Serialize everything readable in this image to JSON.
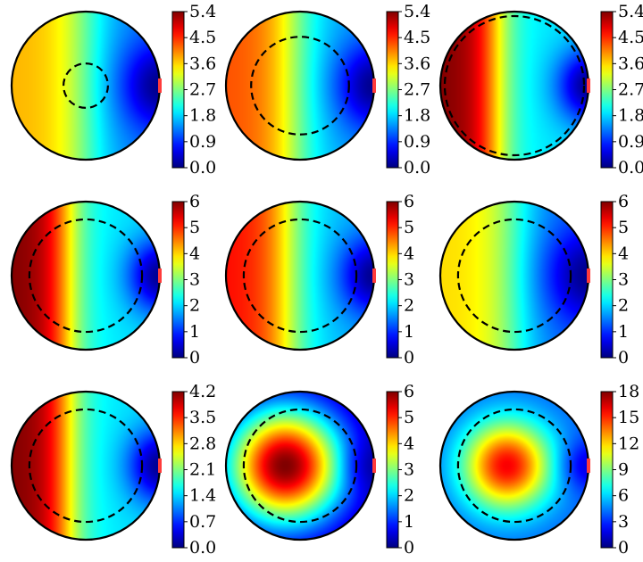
{
  "chart_data": [
    {
      "type": "heatmap",
      "field": "right-sink",
      "hot_center": 0.5,
      "hot_width": 0.62,
      "cold_x": 0.88,
      "sink_gauss": 0.35,
      "max_fraction": 0.7,
      "inner_circle_radius_ratio": 0.3,
      "colorbar_range": [
        0,
        5.4
      ],
      "colorbar_ticks": [
        "5.4",
        "4.5",
        "3.6",
        "2.7",
        "1.8",
        "0.9",
        "0.0"
      ]
    },
    {
      "type": "heatmap",
      "field": "right-sink",
      "hot_center": 0.42,
      "hot_width": 0.6,
      "cold_x": 0.88,
      "sink_gauss": 0.35,
      "max_fraction": 0.8,
      "inner_circle_radius_ratio": 0.66,
      "colorbar_range": [
        0,
        5.4
      ],
      "colorbar_ticks": [
        "5.4",
        "4.5",
        "3.6",
        "2.7",
        "1.8",
        "0.9",
        "0.0"
      ]
    },
    {
      "type": "heatmap",
      "field": "right-sink",
      "hot_center": 0.25,
      "hot_width": 0.45,
      "cold_x": 0.88,
      "sink_gauss": 0.3,
      "max_fraction": 1.0,
      "inner_circle_radius_ratio": 0.94,
      "colorbar_range": [
        0,
        5.4
      ],
      "colorbar_ticks": [
        "5.4",
        "4.5",
        "3.6",
        "2.7",
        "1.8",
        "0.9",
        "0.0"
      ]
    },
    {
      "type": "heatmap",
      "field": "right-sink",
      "hot_center": 0.25,
      "hot_width": 0.45,
      "cold_x": 0.88,
      "sink_gauss": 0.3,
      "max_fraction": 1.0,
      "inner_circle_radius_ratio": 0.76,
      "colorbar_range": [
        0,
        6
      ],
      "colorbar_ticks": [
        "6",
        "5",
        "4",
        "3",
        "2",
        "1",
        "0"
      ]
    },
    {
      "type": "heatmap",
      "field": "right-sink",
      "hot_center": 0.35,
      "hot_width": 0.55,
      "cold_x": 0.88,
      "sink_gauss": 0.32,
      "max_fraction": 0.87,
      "inner_circle_radius_ratio": 0.76,
      "colorbar_range": [
        0,
        6
      ],
      "colorbar_ticks": [
        "6",
        "5",
        "4",
        "3",
        "2",
        "1",
        "0"
      ]
    },
    {
      "type": "heatmap",
      "field": "right-sink",
      "hot_center": 0.5,
      "hot_width": 0.6,
      "cold_x": 0.88,
      "sink_gauss": 0.38,
      "max_fraction": 0.66,
      "inner_circle_radius_ratio": 0.76,
      "colorbar_range": [
        0,
        6
      ],
      "colorbar_ticks": [
        "6",
        "5",
        "4",
        "3",
        "2",
        "1",
        "0"
      ]
    },
    {
      "type": "heatmap",
      "field": "right-sink",
      "hot_center": 0.25,
      "hot_width": 0.45,
      "cold_x": 0.88,
      "sink_gauss": 0.3,
      "max_fraction": 1.0,
      "inner_circle_radius_ratio": 0.76,
      "colorbar_range": [
        0,
        4.2
      ],
      "colorbar_ticks": [
        "4.2",
        "3.5",
        "2.8",
        "2.1",
        "1.4",
        "0.7",
        "0.0"
      ]
    },
    {
      "type": "heatmap",
      "field": "central-peak",
      "peak_x": -0.2,
      "peak_y": 0.0,
      "peak_sigma": 0.55,
      "max_fraction": 1.0,
      "cold_x": 0.9,
      "inner_circle_radius_ratio": 0.76,
      "colorbar_range": [
        0,
        6
      ],
      "colorbar_ticks": [
        "6",
        "5",
        "4",
        "3",
        "2",
        "1",
        "0"
      ]
    },
    {
      "type": "heatmap",
      "field": "central-peak",
      "peak_x": -0.1,
      "peak_y": 0.0,
      "peak_sigma": 0.42,
      "max_fraction": 0.88,
      "base": 0.25,
      "cold_x": 0.92,
      "inner_circle_radius_ratio": 0.76,
      "colorbar_range": [
        0,
        18
      ],
      "colorbar_ticks": [
        "18",
        "15",
        "12",
        "9",
        "6",
        "3",
        "0"
      ]
    }
  ]
}
